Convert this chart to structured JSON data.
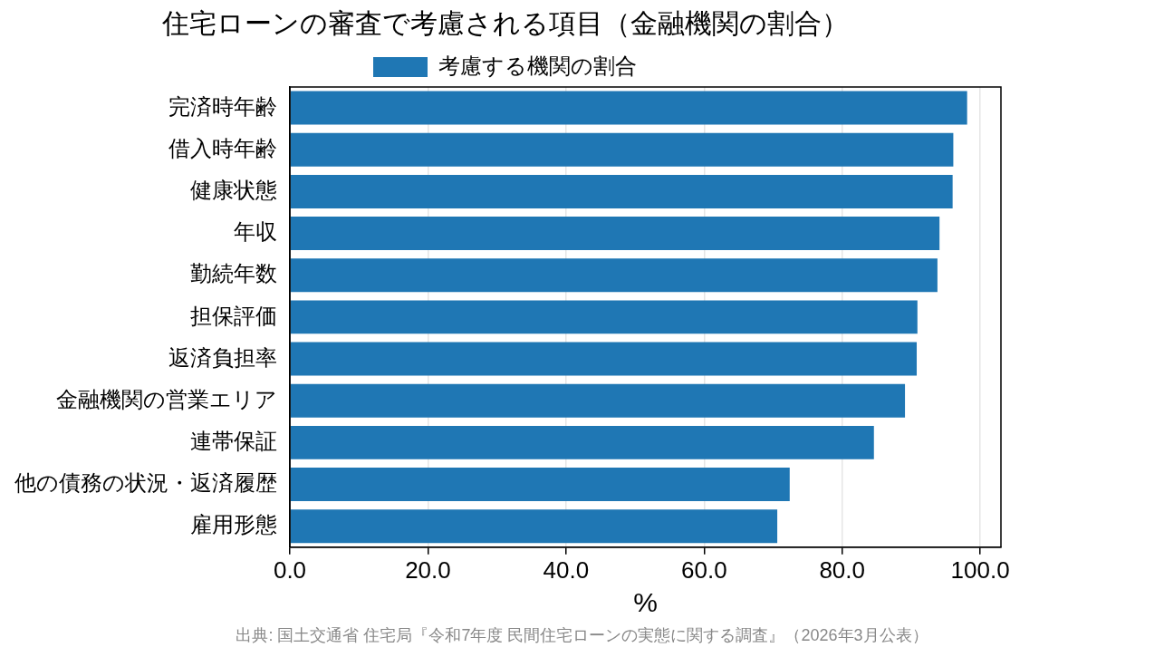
{
  "chart_data": {
    "type": "bar",
    "orientation": "horizontal",
    "title": "住宅ローンの審査で考慮される項目（金融機関の割合）",
    "xlabel": "%",
    "categories": [
      "完済時年齢",
      "借入時年齢",
      "健康状態",
      "年収",
      "勤続年数",
      "担保評価",
      "返済負担率",
      "金融機関の営業エリア",
      "連帯保証",
      "他の債務の状況・返済履歴",
      "雇用形態"
    ],
    "series": [
      {
        "name": "考慮する機関の割合",
        "color": "#1f77b4",
        "values": [
          98.1,
          96.1,
          96.0,
          94.1,
          93.8,
          90.9,
          90.8,
          89.1,
          84.6,
          72.4,
          70.6
        ]
      }
    ],
    "xlim": [
      0,
      103
    ],
    "xticks": [
      {
        "value": 0,
        "label": "0.0"
      },
      {
        "value": 20,
        "label": "20.0"
      },
      {
        "value": 40,
        "label": "40.0"
      },
      {
        "value": 60,
        "label": "60.0"
      },
      {
        "value": 80,
        "label": "80.0"
      },
      {
        "value": 100,
        "label": "100.0"
      }
    ],
    "grid": "x",
    "legend": "top",
    "annotations": [
      "出典: 国土交通省 住宅局『令和7年度 民間住宅ローンの実態に関する調査』（2026年3月公表）"
    ]
  }
}
